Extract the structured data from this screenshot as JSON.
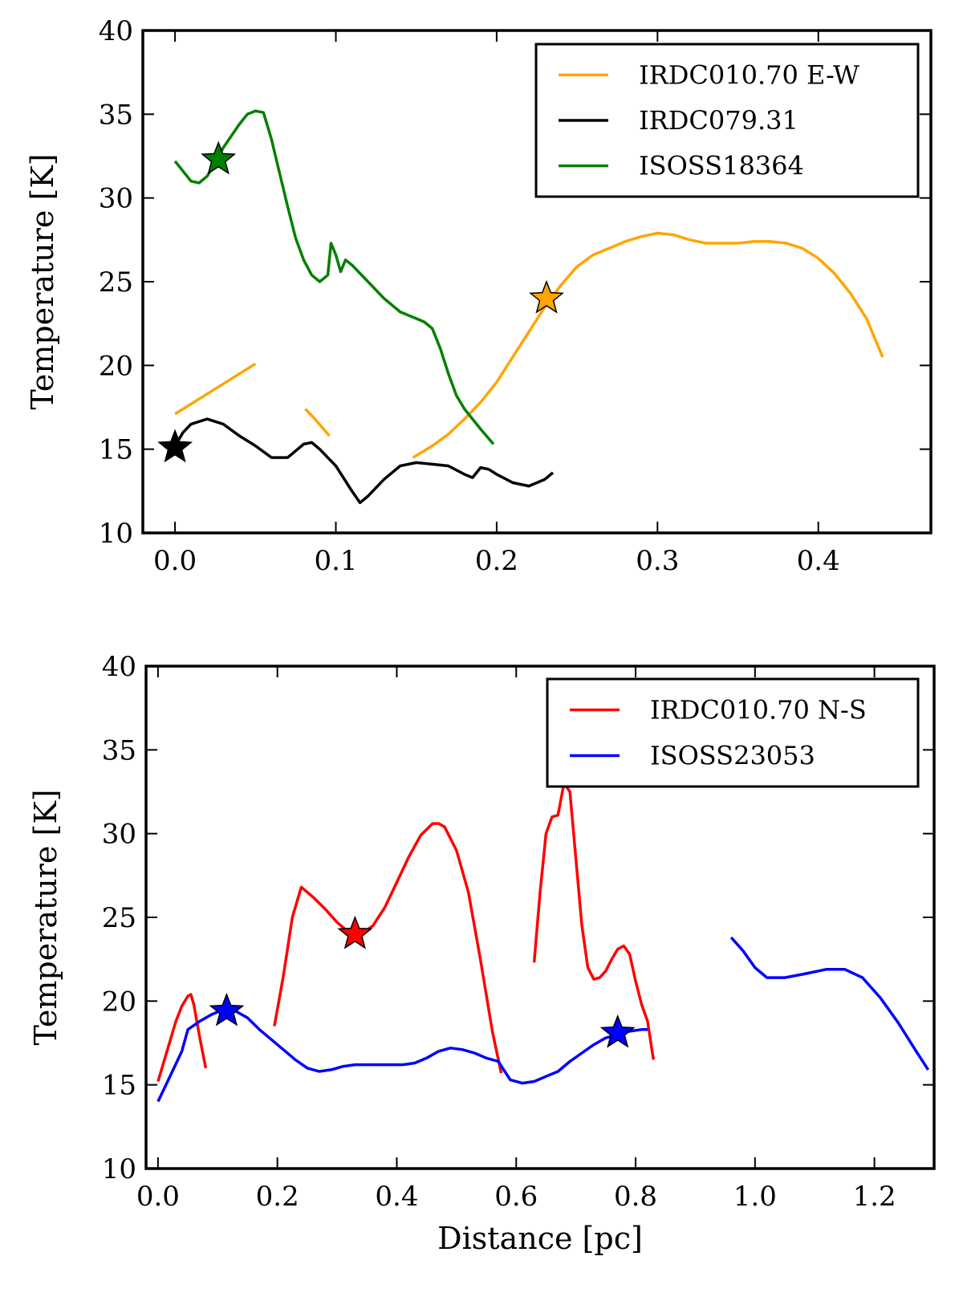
{
  "chart_data": [
    {
      "type": "line",
      "title": "",
      "xlabel": "",
      "ylabel": "Temperature [K]",
      "xlim": [
        -0.02,
        0.47
      ],
      "ylim": [
        10,
        40
      ],
      "xticks": [
        0.0,
        0.1,
        0.2,
        0.3,
        0.4
      ],
      "xtick_labels": [
        "0.0",
        "0.1",
        "0.2",
        "0.3",
        "0.4"
      ],
      "yticks": [
        10,
        15,
        20,
        25,
        30,
        35,
        40
      ],
      "ytick_labels": [
        "10",
        "15",
        "20",
        "25",
        "30",
        "35",
        "40"
      ],
      "grid": false,
      "legend": "top-right",
      "series": [
        {
          "name": "IRDC010.70 E-W",
          "color": "#ffa500",
          "segments": [
            [
              [
                0.0,
                17.1
              ],
              [
                0.01,
                17.7
              ],
              [
                0.02,
                18.3
              ],
              [
                0.03,
                18.9
              ],
              [
                0.04,
                19.5
              ],
              [
                0.05,
                20.1
              ]
            ],
            [
              [
                0.081,
                17.4
              ],
              [
                0.087,
                16.8
              ],
              [
                0.096,
                15.8
              ]
            ],
            [
              [
                0.148,
                14.5
              ],
              [
                0.16,
                15.2
              ],
              [
                0.17,
                15.9
              ],
              [
                0.18,
                16.8
              ],
              [
                0.19,
                17.8
              ],
              [
                0.2,
                19.0
              ],
              [
                0.21,
                20.5
              ],
              [
                0.22,
                22.0
              ],
              [
                0.23,
                23.5
              ],
              [
                0.24,
                24.8
              ],
              [
                0.25,
                25.9
              ],
              [
                0.26,
                26.6
              ],
              [
                0.27,
                27.0
              ],
              [
                0.28,
                27.4
              ],
              [
                0.29,
                27.7
              ],
              [
                0.3,
                27.9
              ],
              [
                0.31,
                27.8
              ],
              [
                0.32,
                27.5
              ],
              [
                0.33,
                27.3
              ],
              [
                0.34,
                27.3
              ],
              [
                0.35,
                27.3
              ],
              [
                0.36,
                27.4
              ],
              [
                0.37,
                27.4
              ],
              [
                0.38,
                27.3
              ],
              [
                0.39,
                27.0
              ],
              [
                0.4,
                26.4
              ],
              [
                0.41,
                25.5
              ],
              [
                0.42,
                24.3
              ],
              [
                0.43,
                22.8
              ],
              [
                0.44,
                20.5
              ]
            ]
          ],
          "star": [
            0.231,
            24.0
          ]
        },
        {
          "name": "IRDC079.31",
          "color": "#000000",
          "segments": [
            [
              [
                0.0,
                15.2
              ],
              [
                0.005,
                16.0
              ],
              [
                0.01,
                16.5
              ],
              [
                0.02,
                16.8
              ],
              [
                0.03,
                16.5
              ],
              [
                0.04,
                15.8
              ],
              [
                0.05,
                15.2
              ],
              [
                0.06,
                14.5
              ],
              [
                0.07,
                14.5
              ],
              [
                0.075,
                14.9
              ],
              [
                0.08,
                15.3
              ],
              [
                0.085,
                15.4
              ],
              [
                0.09,
                15.0
              ],
              [
                0.1,
                14.0
              ],
              [
                0.11,
                12.5
              ],
              [
                0.115,
                11.8
              ],
              [
                0.12,
                12.2
              ],
              [
                0.13,
                13.2
              ],
              [
                0.14,
                14.0
              ],
              [
                0.15,
                14.2
              ],
              [
                0.16,
                14.1
              ],
              [
                0.17,
                14.0
              ],
              [
                0.18,
                13.5
              ],
              [
                0.185,
                13.3
              ],
              [
                0.19,
                13.9
              ],
              [
                0.195,
                13.8
              ],
              [
                0.2,
                13.5
              ],
              [
                0.21,
                13.0
              ],
              [
                0.22,
                12.8
              ],
              [
                0.23,
                13.2
              ],
              [
                0.235,
                13.6
              ]
            ]
          ],
          "star": [
            0.0,
            15.1
          ]
        },
        {
          "name": "ISOSS18364",
          "color": "#008000",
          "segments": [
            [
              [
                0.0,
                32.2
              ],
              [
                0.005,
                31.6
              ],
              [
                0.01,
                31.0
              ],
              [
                0.015,
                30.9
              ],
              [
                0.02,
                31.3
              ],
              [
                0.025,
                32.1
              ],
              [
                0.03,
                33.0
              ],
              [
                0.035,
                33.7
              ],
              [
                0.04,
                34.4
              ],
              [
                0.045,
                35.0
              ],
              [
                0.05,
                35.2
              ],
              [
                0.055,
                35.1
              ],
              [
                0.06,
                33.5
              ],
              [
                0.065,
                31.5
              ],
              [
                0.07,
                29.5
              ],
              [
                0.075,
                27.6
              ],
              [
                0.08,
                26.3
              ],
              [
                0.085,
                25.4
              ],
              [
                0.09,
                25.0
              ],
              [
                0.095,
                25.4
              ],
              [
                0.097,
                27.3
              ],
              [
                0.1,
                26.6
              ],
              [
                0.103,
                25.6
              ],
              [
                0.106,
                26.3
              ],
              [
                0.11,
                26.0
              ],
              [
                0.12,
                25.0
              ],
              [
                0.13,
                24.0
              ],
              [
                0.14,
                23.2
              ],
              [
                0.15,
                22.8
              ],
              [
                0.155,
                22.6
              ],
              [
                0.16,
                22.2
              ],
              [
                0.165,
                21.0
              ],
              [
                0.17,
                19.5
              ],
              [
                0.175,
                18.2
              ],
              [
                0.18,
                17.4
              ],
              [
                0.19,
                16.2
              ],
              [
                0.198,
                15.3
              ]
            ]
          ],
          "star": [
            0.027,
            32.3
          ]
        }
      ]
    },
    {
      "type": "line",
      "title": "",
      "xlabel": "Distance [pc]",
      "ylabel": "Temperature [K]",
      "xlim": [
        -0.02,
        1.3
      ],
      "ylim": [
        10,
        40
      ],
      "xticks": [
        0.0,
        0.2,
        0.4,
        0.6,
        0.8,
        1.0,
        1.2
      ],
      "xtick_labels": [
        "0.0",
        "0.2",
        "0.4",
        "0.6",
        "0.8",
        "1.0",
        "1.2"
      ],
      "yticks": [
        10,
        15,
        20,
        25,
        30,
        35,
        40
      ],
      "ytick_labels": [
        "10",
        "15",
        "20",
        "25",
        "30",
        "35",
        "40"
      ],
      "grid": false,
      "legend": "top-right",
      "series": [
        {
          "name": "IRDC010.70 N-S",
          "color": "#ff0000",
          "segments": [
            [
              [
                0.0,
                15.2
              ],
              [
                0.01,
                16.4
              ],
              [
                0.02,
                17.6
              ],
              [
                0.03,
                18.8
              ],
              [
                0.04,
                19.7
              ],
              [
                0.05,
                20.3
              ],
              [
                0.055,
                20.4
              ],
              [
                0.06,
                19.8
              ],
              [
                0.07,
                17.8
              ],
              [
                0.08,
                16.0
              ]
            ],
            [
              [
                0.195,
                18.5
              ],
              [
                0.21,
                21.5
              ],
              [
                0.225,
                25.0
              ],
              [
                0.24,
                26.8
              ],
              [
                0.25,
                26.5
              ],
              [
                0.26,
                26.2
              ],
              [
                0.28,
                25.5
              ],
              [
                0.3,
                24.7
              ],
              [
                0.32,
                24.1
              ],
              [
                0.34,
                24.0
              ],
              [
                0.36,
                24.5
              ],
              [
                0.38,
                25.6
              ],
              [
                0.4,
                27.1
              ],
              [
                0.42,
                28.6
              ],
              [
                0.44,
                29.9
              ],
              [
                0.46,
                30.6
              ],
              [
                0.47,
                30.6
              ],
              [
                0.48,
                30.4
              ],
              [
                0.5,
                29.0
              ],
              [
                0.52,
                26.5
              ],
              [
                0.54,
                22.5
              ],
              [
                0.56,
                18.2
              ],
              [
                0.575,
                15.7
              ]
            ],
            [
              [
                0.63,
                22.3
              ],
              [
                0.64,
                26.5
              ],
              [
                0.65,
                30.0
              ],
              [
                0.66,
                31.0
              ],
              [
                0.67,
                31.1
              ],
              [
                0.68,
                33.0
              ],
              [
                0.69,
                32.5
              ],
              [
                0.7,
                28.5
              ],
              [
                0.71,
                24.5
              ],
              [
                0.72,
                22.0
              ],
              [
                0.73,
                21.3
              ],
              [
                0.74,
                21.4
              ],
              [
                0.75,
                21.8
              ],
              [
                0.76,
                22.5
              ],
              [
                0.77,
                23.1
              ],
              [
                0.78,
                23.3
              ],
              [
                0.79,
                22.8
              ],
              [
                0.8,
                21.2
              ],
              [
                0.81,
                19.8
              ],
              [
                0.82,
                18.8
              ],
              [
                0.83,
                16.5
              ]
            ]
          ],
          "star": [
            0.33,
            24.0
          ]
        },
        {
          "name": "ISOSS23053",
          "color": "#0000ff",
          "segments": [
            [
              [
                0.0,
                14.0
              ],
              [
                0.02,
                15.5
              ],
              [
                0.04,
                17.0
              ],
              [
                0.05,
                18.3
              ],
              [
                0.07,
                18.8
              ],
              [
                0.09,
                19.2
              ],
              [
                0.11,
                19.5
              ],
              [
                0.13,
                19.4
              ],
              [
                0.15,
                19.0
              ],
              [
                0.17,
                18.3
              ],
              [
                0.19,
                17.7
              ],
              [
                0.21,
                17.1
              ],
              [
                0.23,
                16.5
              ],
              [
                0.25,
                16.0
              ],
              [
                0.27,
                15.8
              ],
              [
                0.29,
                15.9
              ],
              [
                0.31,
                16.1
              ],
              [
                0.33,
                16.2
              ],
              [
                0.35,
                16.2
              ],
              [
                0.37,
                16.2
              ],
              [
                0.39,
                16.2
              ],
              [
                0.41,
                16.2
              ],
              [
                0.43,
                16.3
              ],
              [
                0.45,
                16.6
              ],
              [
                0.47,
                17.0
              ],
              [
                0.49,
                17.2
              ],
              [
                0.51,
                17.1
              ],
              [
                0.53,
                16.9
              ],
              [
                0.55,
                16.6
              ],
              [
                0.57,
                16.4
              ],
              [
                0.59,
                15.3
              ],
              [
                0.61,
                15.1
              ],
              [
                0.63,
                15.2
              ],
              [
                0.65,
                15.5
              ],
              [
                0.67,
                15.8
              ],
              [
                0.69,
                16.4
              ],
              [
                0.71,
                16.9
              ],
              [
                0.73,
                17.4
              ],
              [
                0.75,
                17.8
              ],
              [
                0.77,
                18.0
              ],
              [
                0.79,
                18.2
              ],
              [
                0.81,
                18.3
              ],
              [
                0.82,
                18.3
              ]
            ],
            [
              [
                0.96,
                23.8
              ],
              [
                0.98,
                23.0
              ],
              [
                1.0,
                22.0
              ],
              [
                1.02,
                21.4
              ],
              [
                1.05,
                21.4
              ],
              [
                1.08,
                21.6
              ],
              [
                1.12,
                21.9
              ],
              [
                1.15,
                21.9
              ],
              [
                1.18,
                21.4
              ],
              [
                1.21,
                20.2
              ],
              [
                1.24,
                18.7
              ],
              [
                1.27,
                17.0
              ],
              [
                1.29,
                15.9
              ]
            ]
          ],
          "stars": [
            [
              0.115,
              19.4
            ],
            [
              0.77,
              18.1
            ]
          ]
        }
      ]
    }
  ]
}
